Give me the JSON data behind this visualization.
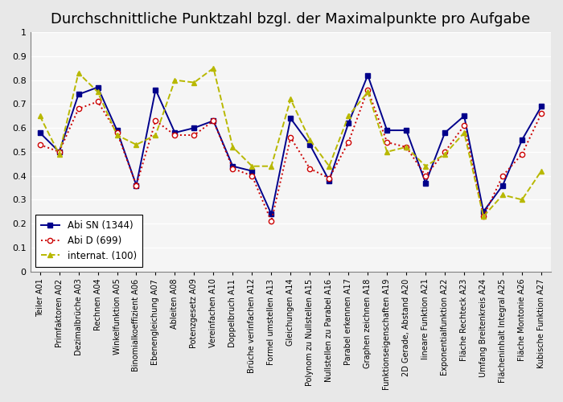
{
  "title": "Durchschnittliche Punktzahl bzgl. der Maximalpunkte pro Aufgabe",
  "categories": [
    "Teiler A01",
    "Primfaktoren A02",
    "Dezimalbrüche A03",
    "Rechnen A04",
    "Winkelfunktion A05",
    "Binomialkoeffizient A06",
    "Ebenengleichung A07",
    "Ableiten A08",
    "Potenzgesetz A09",
    "Vereinfachen A10",
    "Doppelbruch A11",
    "Brüche verinfachen A12",
    "Formel umstellen A13",
    "Gleichungen A14",
    "Polynom zu Nullstellen A15",
    "Nullstellen zu Parabel A16",
    "Parabel erkennen A17",
    "Graphen zeichnen A18",
    "Funktionseigenschaften A19",
    "2D Gerade, Abstand A20",
    "lineare Funktion A21",
    "Exponentialfunktion A22",
    "Fläche Rechteck A23",
    "Umfang Breitenkreis A24",
    "Flächeninhalt Integral A25",
    "Fläche Montonie A26",
    "Kubische Funktion A27"
  ],
  "series": {
    "Abi SN (1344)": [
      0.58,
      0.5,
      0.74,
      0.77,
      0.59,
      0.36,
      0.76,
      0.58,
      0.6,
      0.63,
      0.44,
      0.42,
      0.24,
      0.64,
      0.53,
      0.38,
      0.62,
      0.82,
      0.59,
      0.59,
      0.37,
      0.58,
      0.65,
      0.25,
      0.36,
      0.55,
      0.69
    ],
    "Abi D (699)": [
      0.53,
      0.5,
      0.68,
      0.71,
      0.58,
      0.36,
      0.63,
      0.57,
      0.57,
      0.63,
      0.43,
      0.4,
      0.21,
      0.56,
      0.43,
      0.39,
      0.54,
      0.76,
      0.54,
      0.52,
      0.4,
      0.5,
      0.61,
      0.23,
      0.4,
      0.49,
      0.66
    ],
    "internat. (100)": [
      0.65,
      0.49,
      0.83,
      0.75,
      0.57,
      0.53,
      0.57,
      0.8,
      0.79,
      0.85,
      0.52,
      0.44,
      0.44,
      0.72,
      0.55,
      0.44,
      0.65,
      0.75,
      0.5,
      0.52,
      0.44,
      0.49,
      0.58,
      0.23,
      0.32,
      0.3,
      0.42
    ]
  },
  "colors": {
    "Abi SN (1344)": "#00008B",
    "Abi D (699)": "#CC0000",
    "internat. (100)": "#B8B800"
  },
  "markers": {
    "Abi SN (1344)": "s",
    "Abi D (699)": "o",
    "internat. (100)": "^"
  },
  "marker_filled": {
    "Abi SN (1344)": true,
    "Abi D (699)": false,
    "internat. (100)": true
  },
  "linestyles": {
    "Abi SN (1344)": "-",
    "Abi D (699)": ":",
    "internat. (100)": "--"
  },
  "ylim": [
    0,
    1
  ],
  "yticks": [
    0,
    0.1,
    0.2,
    0.3,
    0.4,
    0.5,
    0.6,
    0.7,
    0.8,
    0.9,
    1.0
  ],
  "ytick_labels": [
    "0",
    "0.1",
    "0.2",
    "0.3",
    "0.4",
    "0.5",
    "0.6",
    "0.7",
    "0.8",
    "0.9",
    "1"
  ],
  "title_fontsize": 13,
  "tick_fontsize": 7,
  "legend_fontsize": 8.5,
  "linewidth": 1.4,
  "markersize": 4.5,
  "fig_bgcolor": "#E8E8E8",
  "plot_bgcolor": "#F5F5F5"
}
